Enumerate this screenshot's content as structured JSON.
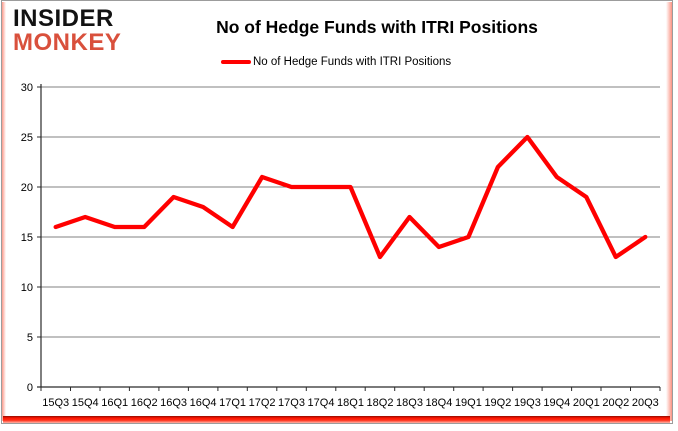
{
  "brand": {
    "line1": "INSIDER",
    "line2": "MONKEY"
  },
  "header": {
    "title": "No of Hedge Funds with ITRI Positions"
  },
  "legend": {
    "label": "No of Hedge Funds with ITRI Positions"
  },
  "colors": {
    "line": "#ff0000",
    "grid": "#818181",
    "axis": "#2b2b2b",
    "text": "#000000",
    "brand_black": "#121212",
    "brand_red": "#d9503c",
    "frame_border": "#9c9c9c",
    "glow_red": "#ff1400"
  },
  "chart_data": {
    "type": "line",
    "title": "No of Hedge Funds with ITRI Positions",
    "categories": [
      "15Q3",
      "15Q4",
      "16Q1",
      "16Q2",
      "16Q3",
      "16Q4",
      "17Q1",
      "17Q2",
      "17Q3",
      "17Q4",
      "18Q1",
      "18Q2",
      "18Q3",
      "18Q4",
      "19Q1",
      "19Q2",
      "19Q3",
      "19Q4",
      "20Q1",
      "20Q2",
      "20Q3"
    ],
    "series": [
      {
        "name": "No of Hedge Funds with ITRI Positions",
        "values": [
          16,
          17,
          16,
          16,
          19,
          18,
          16,
          21,
          20,
          20,
          20,
          13,
          17,
          14,
          15,
          22,
          25,
          21,
          19,
          13,
          15
        ]
      }
    ],
    "xlabel": "",
    "ylabel": "",
    "ylim": [
      0,
      30
    ],
    "yticks": [
      0,
      5,
      10,
      15,
      20,
      25,
      30
    ],
    "grid": true,
    "legend_position": "top-center",
    "line_color": "#ff0000"
  }
}
